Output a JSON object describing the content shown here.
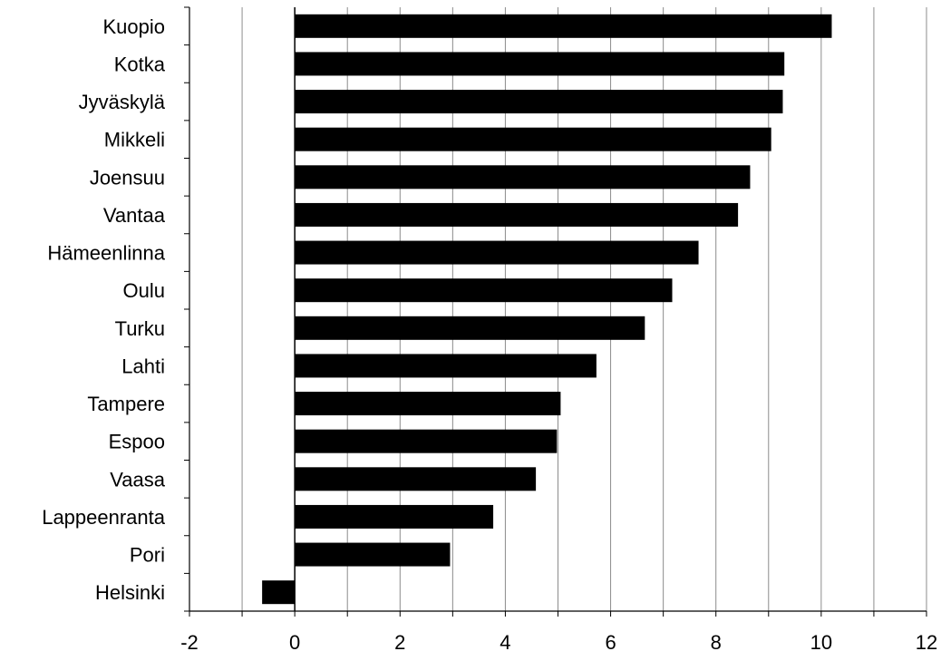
{
  "chart_data": {
    "type": "bar",
    "orientation": "horizontal",
    "title": "",
    "xlabel": "",
    "ylabel": "",
    "categories": [
      "Kuopio",
      "Kotka",
      "Jyväskylä",
      "Mikkeli",
      "Joensuu",
      "Vantaa",
      "Hämeenlinna",
      "Oulu",
      "Turku",
      "Lahti",
      "Tampere",
      "Espoo",
      "Vaasa",
      "Lappeenranta",
      "Pori",
      "Helsinki"
    ],
    "values": [
      10.2,
      9.3,
      9.27,
      9.05,
      8.65,
      8.42,
      7.67,
      7.17,
      6.65,
      5.73,
      5.05,
      4.98,
      4.58,
      3.77,
      2.95,
      -0.62
    ],
    "xlim": [
      -2,
      12
    ],
    "xticks": [
      "-2",
      "0",
      "2",
      "4",
      "6",
      "8",
      "10",
      "12"
    ],
    "grid": "vertical",
    "bar_color": "#000000"
  }
}
